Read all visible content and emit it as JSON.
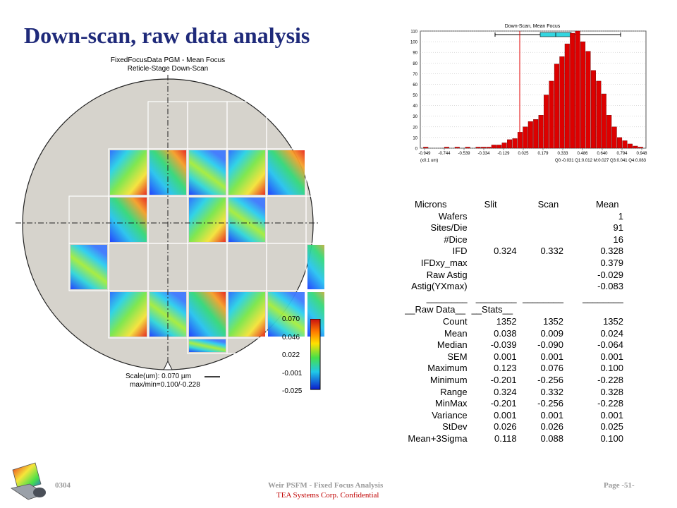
{
  "slide": {
    "title": "Down-scan, raw data analysis",
    "footer_left": "0304",
    "footer_center": "Weir PSFM - Fixed Focus Analysis",
    "footer_right": "Page -51-",
    "footer_confidential": "TEA Systems Corp. Confidential"
  },
  "wafer_map": {
    "title_line1": "FixedFocusData PGM - Mean Focus",
    "title_line2": "Reticle-Stage Down-Scan",
    "scale_label": "Scale(um): 0.070 µm",
    "maxmin_label": "max/min=0.100/-0.228",
    "colorbar_ticks": [
      "0.070",
      "0.046",
      "0.022",
      "-0.001",
      "-0.025"
    ],
    "wafer_color": "#d6d3cc",
    "grid_color": "#ffffff"
  },
  "chart_data": {
    "type": "bar",
    "title": "Down-Scan, Mean Focus",
    "x_tick_labels": [
      "-0.949",
      "-0.744",
      "-0.539",
      "-0.334",
      "-0.129",
      "0.025",
      "0.179",
      "0.333",
      "0.486",
      "0.640",
      "0.794",
      "0.948"
    ],
    "x_unit_label": "(x0.1 um)",
    "quartile_label": "Q0:-0.031 Q1:0.012 M:0.027 Q3:0.041 Q4:0.083",
    "ylim": [
      0,
      110
    ],
    "y_ticks": [
      0,
      10,
      20,
      30,
      40,
      50,
      60,
      70,
      80,
      90,
      100,
      110
    ],
    "bar_color": "#dd0000",
    "values": [
      1,
      0,
      0,
      0,
      1,
      0,
      1,
      0,
      1,
      0,
      1,
      1,
      1,
      3,
      3,
      5,
      8,
      9,
      15,
      20,
      25,
      27,
      31,
      50,
      63,
      79,
      86,
      98,
      108,
      110,
      100,
      91,
      73,
      63,
      51,
      31,
      20,
      10,
      7,
      4,
      2,
      1
    ]
  },
  "stats_table": {
    "headers": [
      "Microns",
      "Slit",
      "Scan",
      "Mean"
    ],
    "summary_rows": [
      [
        "Wafers",
        "",
        "",
        "1"
      ],
      [
        "Sites/Die",
        "",
        "",
        "91"
      ],
      [
        "#Dice",
        "",
        "",
        "16"
      ],
      [
        "IFD",
        "0.324",
        "0.332",
        "0.328"
      ],
      [
        "IFDxy_max",
        "",
        "",
        "0.379"
      ],
      [
        "Raw Astig",
        "",
        "",
        "-0.029"
      ],
      [
        "Astig(YXmax)",
        "",
        "",
        "-0.083"
      ]
    ],
    "section_left": "__Raw Data__",
    "section_right": "__Stats__",
    "stat_rows": [
      [
        "Count",
        "1352",
        "1352",
        "1352"
      ],
      [
        "Mean",
        "0.038",
        "0.009",
        "0.024"
      ],
      [
        "Median",
        "-0.039",
        "-0.090",
        "-0.064"
      ],
      [
        "SEM",
        "0.001",
        "0.001",
        "0.001"
      ],
      [
        "Maximum",
        "0.123",
        "0.076",
        "0.100"
      ],
      [
        "Minimum",
        "-0.201",
        "-0.256",
        "-0.228"
      ],
      [
        "Range",
        "0.324",
        "0.332",
        "0.328"
      ],
      [
        "MinMax",
        "-0.201",
        "-0.256",
        "-0.228"
      ],
      [
        "Variance",
        "0.001",
        "0.001",
        "0.001"
      ],
      [
        "StDev",
        "0.026",
        "0.026",
        "0.025"
      ],
      [
        "Mean+3Sigma",
        "0.118",
        "0.088",
        "0.100"
      ]
    ]
  }
}
